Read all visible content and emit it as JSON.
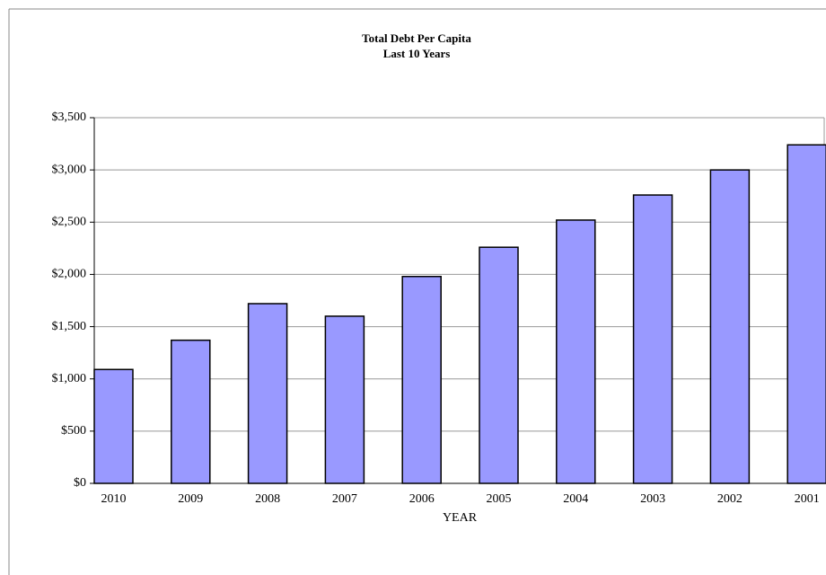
{
  "chart_data": {
    "type": "bar",
    "title": "Total Debt Per Capita",
    "subtitle": "Last 10 Years",
    "x_label": "YEAR",
    "categories": [
      "2010",
      "2009",
      "2008",
      "2007",
      "2006",
      "2005",
      "2004",
      "2003",
      "2002",
      "2001"
    ],
    "values": [
      1090,
      1370,
      1720,
      1600,
      1980,
      2260,
      2520,
      2760,
      3000,
      3240
    ],
    "color": "#9999ff",
    "ylim": [
      0,
      3500
    ],
    "yticks": [
      {
        "value": 0,
        "label": "$0"
      },
      {
        "value": 500,
        "label": "$500"
      },
      {
        "value": 1000,
        "label": "$1,000"
      },
      {
        "value": 1500,
        "label": "$1,500"
      },
      {
        "value": 2000,
        "label": "$2,000"
      },
      {
        "value": 2500,
        "label": "$2,500"
      },
      {
        "value": 3000,
        "label": "$3,000"
      },
      {
        "value": 3500,
        "label": "$3,500"
      }
    ],
    "grid": true
  }
}
